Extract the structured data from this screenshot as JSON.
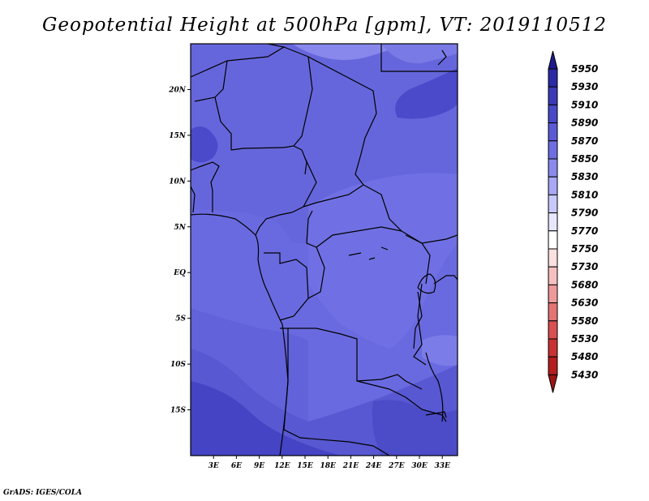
{
  "title": "Geopotential Height at 500hPa [gpm], VT: 2019110512",
  "footer": "GrADS: IGES/COLA",
  "map": {
    "lon_range": [
      0,
      35
    ],
    "lat_range": [
      -20,
      25
    ],
    "lat_ticks": [
      {
        "value": 20,
        "label": "20N"
      },
      {
        "value": 15,
        "label": "15N"
      },
      {
        "value": 10,
        "label": "10N"
      },
      {
        "value": 5,
        "label": "5N"
      },
      {
        "value": 0,
        "label": "EQ"
      },
      {
        "value": -5,
        "label": "5S"
      },
      {
        "value": -10,
        "label": "10S"
      },
      {
        "value": -15,
        "label": "15S"
      }
    ],
    "lon_ticks": [
      {
        "value": 3,
        "label": "3E"
      },
      {
        "value": 6,
        "label": "6E"
      },
      {
        "value": 9,
        "label": "9E"
      },
      {
        "value": 12,
        "label": "12E"
      },
      {
        "value": 15,
        "label": "15E"
      },
      {
        "value": 18,
        "label": "18E"
      },
      {
        "value": 21,
        "label": "21E"
      },
      {
        "value": 24,
        "label": "24E"
      },
      {
        "value": 27,
        "label": "27E"
      },
      {
        "value": 30,
        "label": "30E"
      },
      {
        "value": 33,
        "label": "33E"
      }
    ]
  },
  "colorbar": {
    "levels": [
      "5950",
      "5930",
      "5910",
      "5890",
      "5870",
      "5850",
      "5830",
      "5810",
      "5790",
      "5770",
      "5750",
      "5730",
      "5680",
      "5630",
      "5580",
      "5530",
      "5480",
      "5430"
    ],
    "colors": [
      "#1e1a8c",
      "#2a2aa6",
      "#3a3ab8",
      "#4848c8",
      "#5a5ad6",
      "#6e6ee2",
      "#8a8aee",
      "#a8a8f4",
      "#c8c8fa",
      "#e6e6fd",
      "#ffffff",
      "#fbe0e0",
      "#f6c0c0",
      "#ee9a9a",
      "#e47474",
      "#d85050",
      "#c83232",
      "#b41e1e",
      "#9c1414"
    ]
  }
}
